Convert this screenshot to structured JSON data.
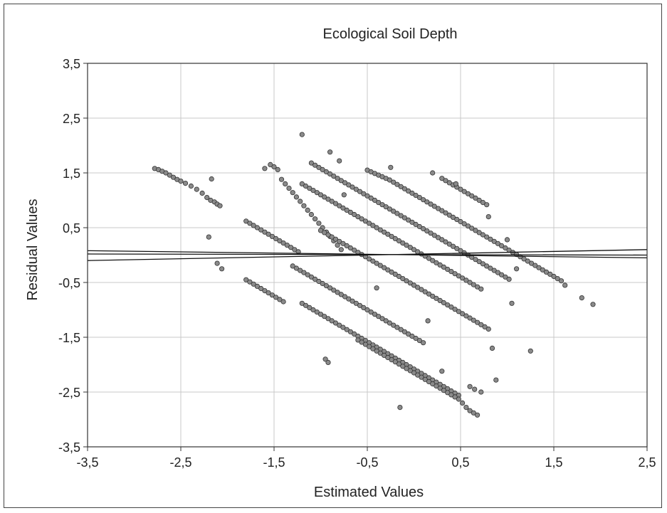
{
  "chart_data": {
    "type": "scatter",
    "title": "Ecological Soil Depth",
    "xlabel": "Estimated Values",
    "ylabel": "Residual Values",
    "xlim": [
      -3.5,
      2.5
    ],
    "ylim": [
      -3.5,
      3.5
    ],
    "xticks": [
      -3.5,
      -2.5,
      -1.5,
      -0.5,
      0.5,
      1.5,
      2.5
    ],
    "yticks": [
      -3.5,
      -2.5,
      -1.5,
      -0.5,
      0.5,
      1.5,
      2.5,
      3.5
    ],
    "xtick_labels": [
      "-3,5",
      "-2,5",
      "-1,5",
      "-0,5",
      "0,5",
      "1,5",
      "2,5"
    ],
    "ytick_labels": [
      "-3,5",
      "-2,5",
      "-1,5",
      "-0,5",
      "0,5",
      "1,5",
      "2,5",
      "3,5"
    ],
    "grid": true,
    "point_color": "#8a8a8a",
    "point_edge_color": "#333333",
    "line_color": "#111111",
    "lines": [
      {
        "x": [
          -3.5,
          2.5
        ],
        "y": [
          -0.1,
          0.1
        ]
      },
      {
        "x": [
          -3.5,
          2.5
        ],
        "y": [
          0.02,
          0.0
        ]
      },
      {
        "x": [
          -3.5,
          2.5
        ],
        "y": [
          0.08,
          -0.05
        ]
      }
    ],
    "series": [
      {
        "x": [
          -2.78,
          -2.74,
          -2.7,
          -2.66,
          -2.62,
          -2.58,
          -2.54,
          -2.5,
          -2.45,
          -2.39,
          -2.33,
          -2.27,
          -2.22,
          -2.18,
          -2.14,
          -2.11,
          -2.08,
          -2.17,
          -2.11,
          -2.06,
          -2.2
        ],
        "y": [
          1.58,
          1.56,
          1.53,
          1.5,
          1.46,
          1.42,
          1.38,
          1.35,
          1.31,
          1.26,
          1.2,
          1.13,
          1.05,
          1.0,
          0.97,
          0.93,
          0.9,
          1.39,
          -0.15,
          -0.25,
          0.33
        ]
      },
      {
        "x": [
          -1.8,
          -1.76,
          -1.72,
          -1.68,
          -1.64,
          -1.6,
          -1.56,
          -1.52,
          -1.48,
          -1.44,
          -1.4,
          -1.36,
          -1.32,
          -1.28,
          -1.24
        ],
        "y": [
          0.62,
          0.58,
          0.54,
          0.5,
          0.46,
          0.42,
          0.38,
          0.34,
          0.3,
          0.26,
          0.22,
          0.18,
          0.14,
          0.1,
          0.06
        ]
      },
      {
        "x": [
          -1.8,
          -1.76,
          -1.72,
          -1.68,
          -1.64,
          -1.6,
          -1.56,
          -1.52,
          -1.48,
          -1.44,
          -1.4
        ],
        "y": [
          -0.45,
          -0.49,
          -0.53,
          -0.57,
          -0.61,
          -0.65,
          -0.69,
          -0.73,
          -0.77,
          -0.81,
          -0.85
        ]
      },
      {
        "x": [
          -1.6,
          -1.54,
          -1.5,
          -1.46,
          -1.42,
          -1.38,
          -1.34,
          -1.3,
          -1.26,
          -1.22,
          -1.18,
          -1.14,
          -1.1,
          -1.06,
          -1.02,
          -0.98,
          -0.94,
          -0.9,
          -0.86,
          -0.82,
          -0.78
        ],
        "y": [
          1.58,
          1.65,
          1.61,
          1.56,
          1.38,
          1.3,
          1.22,
          1.14,
          1.06,
          0.98,
          0.9,
          0.82,
          0.74,
          0.66,
          0.58,
          0.5,
          0.42,
          0.34,
          0.26,
          0.18,
          0.1
        ]
      },
      {
        "x": [
          -1.2,
          -1.16,
          -1.12,
          -1.08,
          -1.04,
          -1.0,
          -0.96,
          -0.92,
          -0.88,
          -0.84,
          -0.8,
          -0.76,
          -0.72,
          -0.68,
          -0.64,
          -0.6,
          -0.56,
          -0.52,
          -0.48,
          -0.44,
          -0.4,
          -0.36,
          -0.32,
          -0.28,
          -0.24,
          -0.2,
          -0.16,
          -0.12,
          -0.08,
          -0.04,
          0.0,
          0.04,
          0.08,
          0.12,
          0.16,
          0.2,
          0.24,
          0.28,
          0.32,
          0.36,
          0.4,
          0.44,
          0.48
        ],
        "y": [
          -0.88,
          -0.92,
          -0.96,
          -1.0,
          -1.04,
          -1.08,
          -1.12,
          -1.16,
          -1.2,
          -1.24,
          -1.28,
          -1.32,
          -1.36,
          -1.4,
          -1.44,
          -1.48,
          -1.52,
          -1.56,
          -1.6,
          -1.64,
          -1.68,
          -1.72,
          -1.76,
          -1.8,
          -1.84,
          -1.88,
          -1.92,
          -1.96,
          -2.0,
          -2.04,
          -2.08,
          -2.12,
          -2.16,
          -2.2,
          -2.24,
          -2.28,
          -2.32,
          -2.36,
          -2.4,
          -2.44,
          -2.48,
          -2.52,
          -2.56
        ]
      },
      {
        "x": [
          -0.6,
          -0.56,
          -0.52,
          -0.48,
          -0.44,
          -0.4,
          -0.36,
          -0.32,
          -0.28,
          -0.24,
          -0.2,
          -0.16,
          -0.12,
          -0.08,
          -0.04,
          0.0,
          0.04,
          0.08,
          0.12,
          0.16,
          0.2,
          0.24,
          0.28,
          0.32,
          0.36,
          0.4,
          0.44,
          0.48,
          0.52,
          0.56,
          0.6,
          0.64,
          0.68
        ],
        "y": [
          -1.55,
          -1.59,
          -1.63,
          -1.67,
          -1.71,
          -1.75,
          -1.79,
          -1.83,
          -1.87,
          -1.91,
          -1.95,
          -1.99,
          -2.03,
          -2.07,
          -2.11,
          -2.15,
          -2.19,
          -2.23,
          -2.27,
          -2.31,
          -2.35,
          -2.39,
          -2.43,
          -2.47,
          -2.51,
          -2.55,
          -2.59,
          -2.63,
          -2.7,
          -2.78,
          -2.84,
          -2.88,
          -2.92
        ]
      },
      {
        "x": [
          -0.5,
          -0.46,
          -0.42,
          -0.38,
          -0.34,
          -0.3,
          -0.26,
          -0.22,
          -0.18,
          -0.14,
          -0.1,
          -0.06,
          -0.02,
          0.02,
          0.06,
          0.1,
          0.14,
          0.18,
          0.22,
          0.26,
          0.3,
          0.34,
          0.38,
          0.42,
          0.46,
          0.5,
          0.54,
          0.58,
          0.62,
          0.66,
          0.7,
          0.74,
          0.78,
          0.82,
          0.86,
          0.9,
          0.94,
          0.98,
          1.02,
          1.06,
          1.1,
          1.14,
          1.18,
          1.22,
          1.26,
          1.3,
          1.34,
          1.38,
          1.42,
          1.46,
          1.5,
          1.54,
          1.58,
          1.62
        ],
        "y": [
          1.55,
          1.52,
          1.49,
          1.46,
          1.43,
          1.4,
          1.37,
          1.33,
          1.29,
          1.25,
          1.21,
          1.17,
          1.13,
          1.09,
          1.05,
          1.01,
          0.97,
          0.93,
          0.89,
          0.85,
          0.81,
          0.77,
          0.73,
          0.69,
          0.65,
          0.61,
          0.57,
          0.53,
          0.49,
          0.45,
          0.41,
          0.37,
          0.33,
          0.29,
          0.25,
          0.21,
          0.17,
          0.13,
          0.09,
          0.05,
          0.01,
          -0.03,
          -0.07,
          -0.11,
          -0.15,
          -0.19,
          -0.23,
          -0.27,
          -0.31,
          -0.35,
          -0.39,
          -0.43,
          -0.47,
          -0.55
        ]
      },
      {
        "x": [
          0.3,
          0.34,
          0.38,
          0.42,
          0.46,
          0.5,
          0.54,
          0.58,
          0.62,
          0.66,
          0.7,
          0.74,
          0.78
        ],
        "y": [
          1.4,
          1.36,
          1.32,
          1.28,
          1.24,
          1.2,
          1.16,
          1.12,
          1.08,
          1.04,
          1.0,
          0.96,
          0.92
        ]
      },
      {
        "x": [
          -1.1,
          -1.06,
          -1.02,
          -0.98,
          -0.94,
          -0.9,
          -0.86,
          -0.82,
          -0.78,
          -0.74,
          -0.7,
          -0.66,
          -0.62,
          -0.58,
          -0.54,
          -0.5,
          -0.46,
          -0.42,
          -0.38,
          -0.34,
          -0.3,
          -0.26,
          -0.22,
          -0.18,
          -0.14,
          -0.1,
          -0.06,
          -0.02,
          0.02,
          0.06,
          0.1,
          0.14,
          0.18,
          0.22,
          0.26,
          0.3,
          0.34,
          0.38,
          0.42,
          0.46,
          0.5,
          0.54,
          0.58,
          0.62,
          0.66,
          0.7,
          0.74,
          0.78,
          0.82,
          0.86,
          0.9,
          0.94,
          0.98,
          1.02
        ],
        "y": [
          1.68,
          1.64,
          1.6,
          1.56,
          1.52,
          1.48,
          1.44,
          1.4,
          1.36,
          1.32,
          1.28,
          1.24,
          1.2,
          1.16,
          1.12,
          1.08,
          1.04,
          1.0,
          0.96,
          0.92,
          0.88,
          0.84,
          0.8,
          0.76,
          0.72,
          0.68,
          0.64,
          0.6,
          0.56,
          0.52,
          0.48,
          0.44,
          0.4,
          0.36,
          0.32,
          0.28,
          0.24,
          0.2,
          0.16,
          0.12,
          0.08,
          0.04,
          0.0,
          -0.04,
          -0.08,
          -0.12,
          -0.16,
          -0.2,
          -0.24,
          -0.28,
          -0.32,
          -0.36,
          -0.4,
          -0.44
        ]
      },
      {
        "x": [
          -1.2,
          -1.16,
          -1.12,
          -1.08,
          -1.04,
          -1.0,
          -0.96,
          -0.92,
          -0.88,
          -0.84,
          -0.8,
          -0.76,
          -0.72,
          -0.68,
          -0.64,
          -0.6,
          -0.56,
          -0.52,
          -0.48,
          -0.44,
          -0.4,
          -0.36,
          -0.32,
          -0.28,
          -0.24,
          -0.2,
          -0.16,
          -0.12,
          -0.08,
          -0.04,
          0.0,
          0.04,
          0.08,
          0.12,
          0.16,
          0.2,
          0.24,
          0.28,
          0.32,
          0.36,
          0.4,
          0.44,
          0.48,
          0.52,
          0.56,
          0.6,
          0.64,
          0.68,
          0.72
        ],
        "y": [
          1.3,
          1.26,
          1.22,
          1.18,
          1.14,
          1.1,
          1.06,
          1.02,
          0.98,
          0.94,
          0.9,
          0.86,
          0.82,
          0.78,
          0.74,
          0.7,
          0.66,
          0.62,
          0.58,
          0.54,
          0.5,
          0.46,
          0.42,
          0.38,
          0.34,
          0.3,
          0.26,
          0.22,
          0.18,
          0.14,
          0.1,
          0.06,
          0.02,
          -0.02,
          -0.06,
          -0.1,
          -0.14,
          -0.18,
          -0.22,
          -0.26,
          -0.3,
          -0.34,
          -0.38,
          -0.42,
          -0.46,
          -0.5,
          -0.54,
          -0.58,
          -0.62
        ]
      },
      {
        "x": [
          -1.0,
          -0.96,
          -0.92,
          -0.88,
          -0.84,
          -0.8,
          -0.76,
          -0.72,
          -0.68,
          -0.64,
          -0.6,
          -0.56,
          -0.52,
          -0.48,
          -0.44,
          -0.4,
          -0.36,
          -0.32,
          -0.28,
          -0.24,
          -0.2,
          -0.16,
          -0.12,
          -0.08,
          -0.04,
          0.0,
          0.04,
          0.08,
          0.12,
          0.16,
          0.2,
          0.24,
          0.28,
          0.32,
          0.36,
          0.4,
          0.44,
          0.48,
          0.52,
          0.56,
          0.6,
          0.64,
          0.68,
          0.72,
          0.76,
          0.8
        ],
        "y": [
          0.45,
          0.41,
          0.37,
          0.33,
          0.29,
          0.25,
          0.21,
          0.17,
          0.13,
          0.09,
          0.05,
          0.01,
          -0.03,
          -0.07,
          -0.11,
          -0.15,
          -0.19,
          -0.23,
          -0.27,
          -0.31,
          -0.35,
          -0.39,
          -0.43,
          -0.47,
          -0.51,
          -0.55,
          -0.59,
          -0.63,
          -0.67,
          -0.71,
          -0.75,
          -0.79,
          -0.83,
          -0.87,
          -0.91,
          -0.95,
          -0.99,
          -1.03,
          -1.07,
          -1.11,
          -1.15,
          -1.19,
          -1.23,
          -1.27,
          -1.31,
          -1.35
        ]
      },
      {
        "x": [
          -1.3,
          -1.26,
          -1.22,
          -1.18,
          -1.14,
          -1.1,
          -1.06,
          -1.02,
          -0.98,
          -0.94,
          -0.9,
          -0.86,
          -0.82,
          -0.78,
          -0.74,
          -0.7,
          -0.66,
          -0.62,
          -0.58,
          -0.54,
          -0.5,
          -0.46,
          -0.42,
          -0.38,
          -0.34,
          -0.3,
          -0.26,
          -0.22,
          -0.18,
          -0.14,
          -0.1,
          -0.06,
          -0.02,
          0.02,
          0.06,
          0.1
        ],
        "y": [
          -0.2,
          -0.24,
          -0.28,
          -0.32,
          -0.36,
          -0.4,
          -0.44,
          -0.48,
          -0.52,
          -0.56,
          -0.6,
          -0.64,
          -0.68,
          -0.72,
          -0.76,
          -0.8,
          -0.84,
          -0.88,
          -0.92,
          -0.96,
          -1.0,
          -1.04,
          -1.08,
          -1.12,
          -1.16,
          -1.2,
          -1.24,
          -1.28,
          -1.32,
          -1.36,
          -1.4,
          -1.44,
          -1.48,
          -1.52,
          -1.56,
          -1.6
        ]
      },
      {
        "x": [
          -1.2,
          -0.9,
          -0.8,
          -0.95,
          -0.92,
          -0.15,
          0.3,
          0.88,
          1.0,
          1.05,
          1.1,
          1.25,
          1.8,
          1.92,
          0.2,
          0.45,
          0.8,
          -0.25,
          -0.75,
          0.6,
          0.65,
          0.72,
          0.84,
          0.15,
          -0.4
        ],
        "y": [
          2.2,
          1.88,
          1.72,
          -1.9,
          -1.96,
          -2.78,
          -2.12,
          -2.28,
          0.28,
          -0.88,
          -0.25,
          -1.75,
          -0.78,
          -0.9,
          1.5,
          1.3,
          0.7,
          1.6,
          1.1,
          -2.4,
          -2.45,
          -2.5,
          -1.7,
          -1.2,
          -0.6
        ]
      }
    ]
  }
}
